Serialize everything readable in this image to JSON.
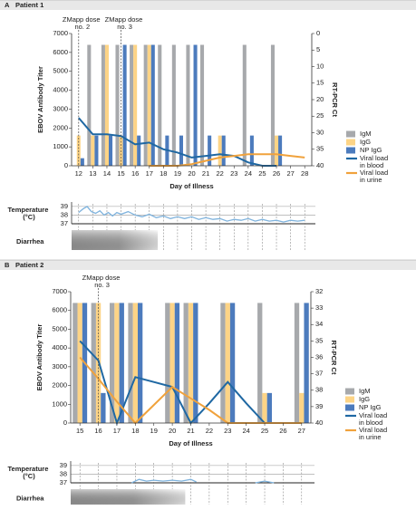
{
  "chart_data": [
    {
      "type": "bar",
      "panel": "A",
      "title": "Patient 1",
      "xlabel": "Day of Illness",
      "ylabel": "EBOV Antibody Titer",
      "y2label": "RT-PCR Ct",
      "categories": [
        12,
        13,
        14,
        15,
        16,
        17,
        18,
        19,
        20,
        21,
        22,
        23,
        24,
        25,
        26,
        27,
        28
      ],
      "ylim": [
        0,
        7000
      ],
      "yticks": [
        0,
        1000,
        2000,
        3000,
        4000,
        5000,
        6000,
        7000
      ],
      "y2lim": [
        40,
        0
      ],
      "y2ticks": [
        0,
        5,
        10,
        15,
        20,
        25,
        30,
        35,
        40
      ],
      "series": [
        {
          "name": "IgM",
          "color": "#a7a9ac",
          "values": [
            0,
            6400,
            6400,
            6400,
            6400,
            6400,
            6400,
            6400,
            6400,
            6400,
            0,
            0,
            6400,
            0,
            6400,
            0,
            0
          ]
        },
        {
          "name": "IgG",
          "color": "#fdd486",
          "values": [
            1600,
            1600,
            6400,
            1600,
            6400,
            6400,
            0,
            0,
            0,
            0,
            1600,
            0,
            0,
            0,
            1600,
            0,
            0
          ]
        },
        {
          "name": "NP IgG",
          "color": "#4c7bbd",
          "values": [
            400,
            1600,
            1600,
            6400,
            1600,
            6400,
            1600,
            1600,
            6400,
            1600,
            1600,
            0,
            1600,
            0,
            1600,
            0,
            0
          ]
        },
        {
          "name": "Viral load in blood",
          "color": "#1f68a3",
          "axis": "y2",
          "values": [
            25.5,
            30.5,
            30.5,
            31,
            33.5,
            33,
            35,
            36,
            37.5,
            37,
            36.5,
            37,
            39,
            40,
            40,
            null,
            null
          ]
        },
        {
          "name": "Viral load in urine",
          "color": "#f0a23c",
          "axis": "y2",
          "values": [
            null,
            null,
            null,
            null,
            null,
            40,
            40,
            40,
            39.5,
            38.5,
            37.5,
            37,
            36.5,
            36.5,
            36.5,
            37,
            37.5
          ]
        }
      ],
      "annotations": [
        {
          "text": "ZMapp dose no. 2",
          "x": 12
        },
        {
          "text": "ZMapp dose no. 3",
          "x": 15
        }
      ]
    },
    {
      "type": "line",
      "ylabel": "Temperature (°C)",
      "xlim": [
        11.5,
        28.5
      ],
      "ylim": [
        37,
        39.3
      ],
      "yticks": [
        37,
        38,
        39
      ],
      "color": "#7fb3dd",
      "x": [
        12,
        12.3,
        12.6,
        12.9,
        13.2,
        13.5,
        13.8,
        14.1,
        14.4,
        14.7,
        15,
        15.5,
        16,
        16.5,
        17,
        17.5,
        18,
        18.5,
        19,
        19.5,
        20,
        20.5,
        21,
        21.5,
        22,
        22.5,
        23,
        23.5,
        24,
        24.5,
        25,
        25.5,
        26,
        26.5,
        27,
        27.5,
        28
      ],
      "values": [
        38.3,
        38.7,
        39,
        38.4,
        38.2,
        38.5,
        38,
        38.3,
        37.9,
        38.3,
        38.1,
        38.4,
        38,
        37.8,
        38.1,
        37.7,
        37.9,
        37.6,
        37.8,
        37.6,
        37.8,
        37.5,
        37.7,
        37.5,
        37.6,
        37.3,
        37.5,
        37.4,
        37.6,
        37.3,
        37.5,
        37.3,
        37.4,
        37.2,
        37.4,
        37.3,
        37.4
      ],
      "diarrhea": {
        "label": "Diarrhea",
        "start": 11.5,
        "end": 17.6
      }
    },
    {
      "type": "bar",
      "panel": "B",
      "title": "Patient 2",
      "xlabel": "Day of Illness",
      "ylabel": "EBOV Antibody Titer",
      "y2label": "RT-PCR Ct",
      "categories": [
        15,
        16,
        17,
        18,
        19,
        20,
        21,
        22,
        23,
        24,
        25,
        26,
        27
      ],
      "ylim": [
        0,
        7000
      ],
      "yticks": [
        0,
        1000,
        2000,
        3000,
        4000,
        5000,
        6000,
        7000
      ],
      "y2lim": [
        40,
        32
      ],
      "y2ticks": [
        32,
        33,
        34,
        35,
        36,
        37,
        38,
        39,
        40
      ],
      "series": [
        {
          "name": "IgM",
          "color": "#a7a9ac",
          "values": [
            6400,
            6400,
            6400,
            6400,
            0,
            6400,
            6400,
            0,
            6400,
            0,
            6400,
            0,
            6400
          ]
        },
        {
          "name": "IgG",
          "color": "#fdd486",
          "values": [
            6400,
            6400,
            6400,
            6400,
            0,
            6400,
            6400,
            0,
            6400,
            0,
            1600,
            0,
            1600
          ]
        },
        {
          "name": "NP IgG",
          "color": "#4c7bbd",
          "values": [
            6400,
            1600,
            6400,
            6400,
            0,
            6400,
            6400,
            0,
            6400,
            0,
            1600,
            0,
            6400
          ]
        },
        {
          "name": "Viral load in blood",
          "color": "#1f68a3",
          "axis": "y2",
          "values": [
            35,
            36.2,
            40,
            37.2,
            37.5,
            37.8,
            40,
            38.8,
            37.5,
            38.8,
            40,
            null,
            null
          ]
        },
        {
          "name": "Viral load in urine",
          "color": "#f0a23c",
          "axis": "y2",
          "values": [
            36,
            37.3,
            38.7,
            40,
            38.9,
            37.8,
            38.5,
            39.2,
            40,
            40,
            40,
            40,
            40
          ]
        }
      ],
      "annotations": [
        {
          "text": "ZMapp dose no. 3",
          "x": 16
        }
      ]
    },
    {
      "type": "line",
      "ylabel": "Temperature (°C)",
      "xlim": [
        14.5,
        27.5
      ],
      "ylim": [
        37,
        39.3
      ],
      "yticks": [
        37,
        38,
        39
      ],
      "color": "#7fb3dd",
      "x": [
        17.8,
        18.2,
        18.6,
        19,
        19.5,
        20,
        20.5,
        21,
        21.3,
        21.6,
        24.5,
        25,
        25.5
      ],
      "values": [
        37,
        37.4,
        37.2,
        37.3,
        37.2,
        37.3,
        37.2,
        37.4,
        37.1,
        null,
        37,
        37.2,
        37
      ],
      "diarrhea": {
        "label": "Diarrhea",
        "start": 14.5,
        "end": 20.7
      }
    }
  ]
}
